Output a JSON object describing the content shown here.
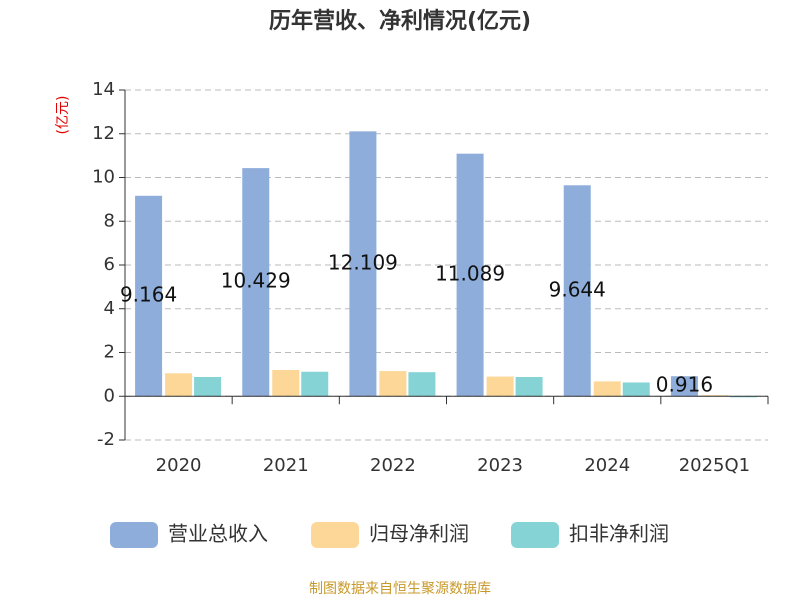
{
  "chart_data": {
    "type": "bar",
    "title": "历年营收、净利情况(亿元)",
    "y_axis_label": "(亿元)",
    "categories": [
      "2020",
      "2021",
      "2022",
      "2023",
      "2024",
      "2025Q1"
    ],
    "series": [
      {
        "name": "营业总收入",
        "color": "#8eadda",
        "values": [
          9.164,
          10.429,
          12.109,
          11.089,
          9.644,
          0.916
        ],
        "data_labels": true
      },
      {
        "name": "归母净利润",
        "color": "#fdd797",
        "values": [
          1.05,
          1.2,
          1.15,
          0.9,
          0.68,
          0.05
        ]
      },
      {
        "name": "扣非净利润",
        "color": "#86d3d6",
        "values": [
          0.88,
          1.12,
          1.1,
          0.88,
          0.63,
          -0.05
        ]
      }
    ],
    "ylim": [
      -2,
      14
    ],
    "yticks": [
      -2,
      0,
      2,
      4,
      6,
      8,
      10,
      12,
      14
    ],
    "grid": true,
    "legend": "bottom",
    "source": "制图数据来自恒生聚源数据库"
  }
}
